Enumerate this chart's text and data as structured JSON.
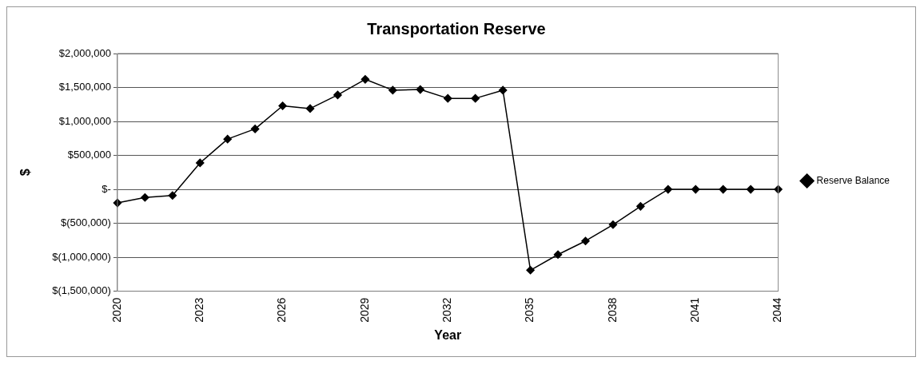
{
  "chart_data": {
    "type": "line",
    "title": "Transportation Reserve",
    "xlabel": "Year",
    "ylabel": "$",
    "categories": [
      "2020",
      null,
      null,
      "2023",
      null,
      null,
      "2026",
      null,
      null,
      "2029",
      null,
      null,
      "2032",
      null,
      null,
      "2035",
      null,
      null,
      "2038",
      null,
      null,
      "2041",
      null,
      null,
      "2044"
    ],
    "series": [
      {
        "name": "Reserve Balance",
        "color": "#000000",
        "values": [
          -200000,
          -120000,
          -90000,
          390000,
          740000,
          890000,
          1230000,
          1190000,
          1390000,
          1620000,
          1460000,
          1470000,
          1340000,
          1340000,
          1460000,
          -1190000,
          -960000,
          -760000,
          -520000,
          -250000,
          0,
          0,
          0,
          0,
          0
        ]
      }
    ],
    "ylim": [
      -1500000,
      2000000
    ],
    "yticks": [
      {
        "value": -1500000,
        "label": "$(1,500,000)"
      },
      {
        "value": -1000000,
        "label": "$(1,000,000)"
      },
      {
        "value": -500000,
        "label": "$(500,000)"
      },
      {
        "value": 0,
        "label": "$-"
      },
      {
        "value": 500000,
        "label": "$500,000"
      },
      {
        "value": 1000000,
        "label": "$1,000,000"
      },
      {
        "value": 1500000,
        "label": "$1,500,000"
      },
      {
        "value": 2000000,
        "label": "$2,000,000"
      }
    ],
    "grid": "y",
    "legend": "right",
    "marker": "diamond",
    "line_style": "solid"
  }
}
